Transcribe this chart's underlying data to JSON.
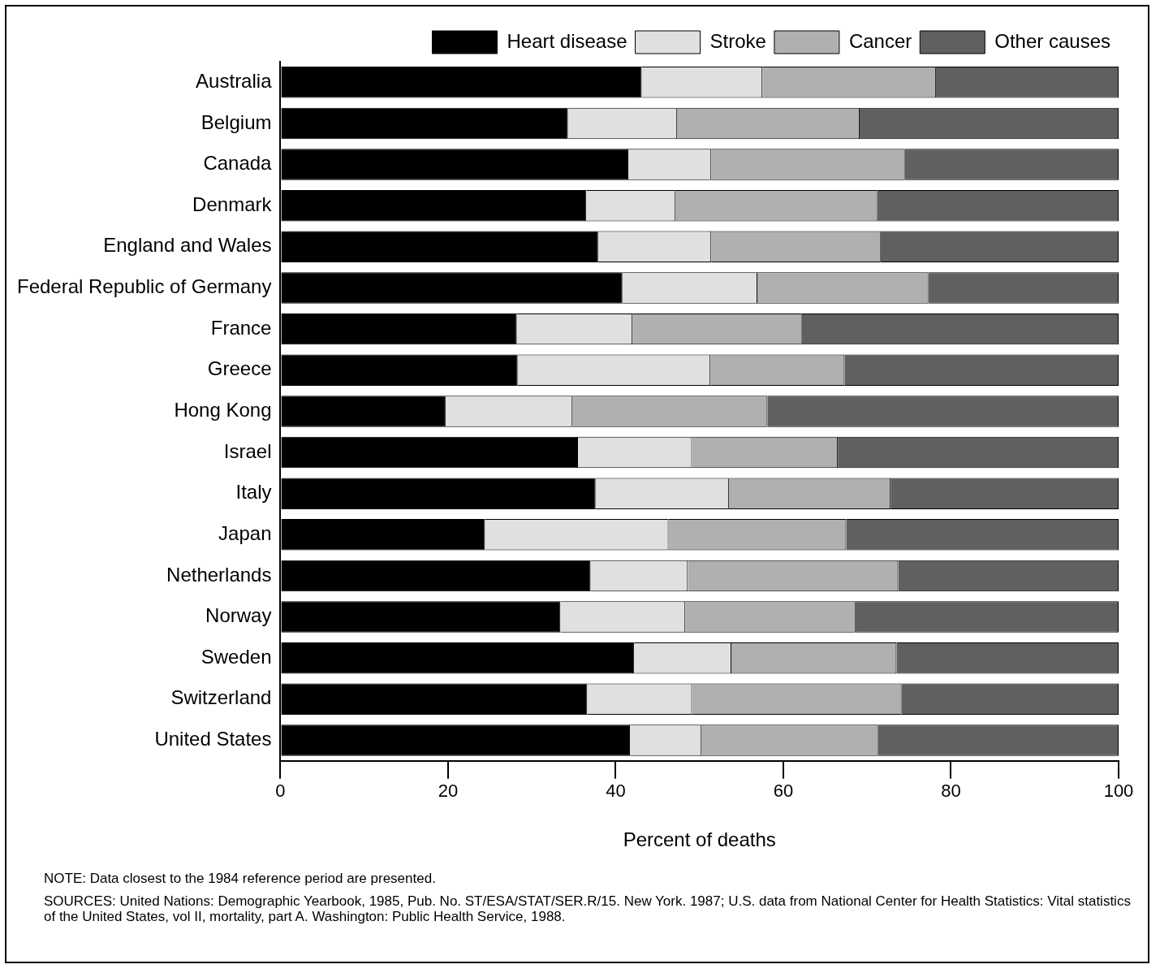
{
  "chart_data": {
    "type": "bar",
    "orientation": "horizontal",
    "stacked": true,
    "legend": "top right",
    "xlabel": "Percent of deaths",
    "categories": [
      "Australia",
      "Belgium",
      "Canada",
      "Denmark",
      "England and Wales",
      "Federal Republic of Germany",
      "France",
      "Greece",
      "Hong Kong",
      "Israel",
      "Italy",
      "Japan",
      "Netherlands",
      "Norway",
      "Sweden",
      "Switzerland",
      "United States"
    ],
    "series": [
      {
        "name": "Heart disease",
        "color": "#000000",
        "values": [
          43.1,
          34.3,
          41.5,
          36.5,
          37.9,
          40.8,
          28.2,
          28.3,
          19.7,
          35.5,
          37.6,
          24.4,
          37.0,
          33.4,
          42.2,
          36.6,
          41.7
        ]
      },
      {
        "name": "Stroke",
        "color": "#e0e0e0",
        "values": [
          14.4,
          13.0,
          9.9,
          10.6,
          13.5,
          16.1,
          13.8,
          23.0,
          15.1,
          13.6,
          15.9,
          21.9,
          11.6,
          14.9,
          11.6,
          12.5,
          8.5
        ]
      },
      {
        "name": "Cancer",
        "color": "#b0b0b0",
        "values": [
          20.7,
          21.8,
          23.1,
          24.1,
          20.2,
          20.4,
          20.2,
          16.0,
          23.3,
          17.4,
          19.3,
          21.2,
          25.1,
          20.3,
          19.7,
          25.0,
          21.1
        ]
      },
      {
        "name": "Other causes",
        "color": "#606060",
        "values": [
          21.8,
          30.9,
          25.5,
          28.8,
          28.4,
          22.7,
          37.8,
          32.7,
          41.9,
          33.5,
          27.2,
          32.5,
          26.3,
          31.4,
          26.5,
          25.9,
          28.7
        ]
      }
    ],
    "xlim": [
      0,
      100
    ],
    "xticks": [
      0,
      20,
      40,
      60,
      80,
      100
    ],
    "annotations": [
      "NOTE:  Data closest to the 1984 reference period are presented.",
      "SOURCES:  United Nations:  Demographic Yearbook, 1985, Pub. No. ST/ESA/STAT/SER.R/15.  New York. 1987;  U.S. data from National Center for Health Statistics:  Vital statistics of the United States, vol II, mortality, part A.  Washington:  Public Health Service, 1988."
    ]
  }
}
